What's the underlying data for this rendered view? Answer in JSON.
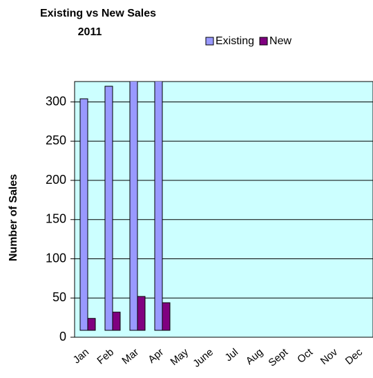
{
  "chart_data": {
    "type": "bar",
    "title": "Existing vs New Sales",
    "subtitle": "2011",
    "y_label": "Number of Sales",
    "categories": [
      "Jan",
      "Feb",
      "Mar",
      "Apr",
      "May",
      "June",
      "Jul",
      "Aug",
      "Sept",
      "Oct",
      "Nov",
      "Dec"
    ],
    "series": [
      {
        "name": "Existing",
        "color": "#9999ff",
        "values": [
          304,
          320,
          340,
          345,
          null,
          null,
          null,
          null,
          null,
          null,
          null,
          null
        ]
      },
      {
        "name": "New",
        "color": "#800080",
        "values": [
          24,
          32,
          52,
          44,
          null,
          null,
          null,
          null,
          null,
          null,
          null,
          null
        ]
      }
    ],
    "ylim": [
      0,
      326
    ],
    "yticks": [
      0,
      50,
      100,
      150,
      200,
      250,
      300
    ],
    "grid": true,
    "background": "#ccffff"
  }
}
